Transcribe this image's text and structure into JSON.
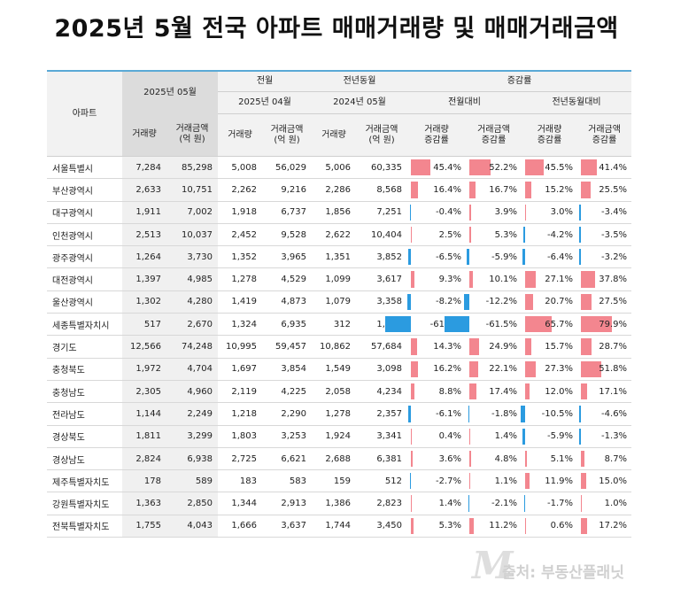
{
  "title": "2025년 5월 전국 아파트 매매거래량 및 매매거래금액",
  "header": {
    "corner": "아파트",
    "current_month": "2025년 05월",
    "prev_month_group": "전월",
    "prev_year_group": "전년동월",
    "change_group": "증감률",
    "prev_month": "2025년 04월",
    "prev_year_month": "2024년 05월",
    "mom": "전월대비",
    "yoy": "전년동월대비",
    "volume": "거래량",
    "amount_l1": "거래금액",
    "amount_l2": "(억 원)",
    "vol_rate_l1": "거래량",
    "amt_rate_l1": "거래금액",
    "rate_l2": "증감률"
  },
  "colors": {
    "positive": "#f3868f",
    "negative": "#2b9be0",
    "accent": "#5aa9d6"
  },
  "rows": [
    {
      "region": "서울특별시",
      "v25": "7,284",
      "a25": "85,298",
      "vpm": "5,008",
      "apm": "56,029",
      "vpy": "5,006",
      "apy": "60,335",
      "mv": "45.4%",
      "ma": "52.2%",
      "yv": "45.5%",
      "ya": "41.4%"
    },
    {
      "region": "부산광역시",
      "v25": "2,633",
      "a25": "10,751",
      "vpm": "2,262",
      "apm": "9,216",
      "vpy": "2,286",
      "apy": "8,568",
      "mv": "16.4%",
      "ma": "16.7%",
      "yv": "15.2%",
      "ya": "25.5%"
    },
    {
      "region": "대구광역시",
      "v25": "1,911",
      "a25": "7,002",
      "vpm": "1,918",
      "apm": "6,737",
      "vpy": "1,856",
      "apy": "7,251",
      "mv": "-0.4%",
      "ma": "3.9%",
      "yv": "3.0%",
      "ya": "-3.4%"
    },
    {
      "region": "인천광역시",
      "v25": "2,513",
      "a25": "10,037",
      "vpm": "2,452",
      "apm": "9,528",
      "vpy": "2,622",
      "apy": "10,404",
      "mv": "2.5%",
      "ma": "5.3%",
      "yv": "-4.2%",
      "ya": "-3.5%"
    },
    {
      "region": "광주광역시",
      "v25": "1,264",
      "a25": "3,730",
      "vpm": "1,352",
      "apm": "3,965",
      "vpy": "1,351",
      "apy": "3,852",
      "mv": "-6.5%",
      "ma": "-5.9%",
      "yv": "-6.4%",
      "ya": "-3.2%"
    },
    {
      "region": "대전광역시",
      "v25": "1,397",
      "a25": "4,985",
      "vpm": "1,278",
      "apm": "4,529",
      "vpy": "1,099",
      "apy": "3,617",
      "mv": "9.3%",
      "ma": "10.1%",
      "yv": "27.1%",
      "ya": "37.8%"
    },
    {
      "region": "울산광역시",
      "v25": "1,302",
      "a25": "4,280",
      "vpm": "1,419",
      "apm": "4,873",
      "vpy": "1,079",
      "apy": "3,358",
      "mv": "-8.2%",
      "ma": "-12.2%",
      "yv": "20.7%",
      "ya": "27.5%"
    },
    {
      "region": "세종특별자치시",
      "v25": "517",
      "a25": "2,670",
      "vpm": "1,324",
      "apm": "6,935",
      "vpy": "312",
      "apy": "1,484",
      "mv": "-61.0%",
      "ma": "-61.5%",
      "yv": "65.7%",
      "ya": "79.9%"
    },
    {
      "region": "경기도",
      "v25": "12,566",
      "a25": "74,248",
      "vpm": "10,995",
      "apm": "59,457",
      "vpy": "10,862",
      "apy": "57,684",
      "mv": "14.3%",
      "ma": "24.9%",
      "yv": "15.7%",
      "ya": "28.7%"
    },
    {
      "region": "충청북도",
      "v25": "1,972",
      "a25": "4,704",
      "vpm": "1,697",
      "apm": "3,854",
      "vpy": "1,549",
      "apy": "3,098",
      "mv": "16.2%",
      "ma": "22.1%",
      "yv": "27.3%",
      "ya": "51.8%"
    },
    {
      "region": "충청남도",
      "v25": "2,305",
      "a25": "4,960",
      "vpm": "2,119",
      "apm": "4,225",
      "vpy": "2,058",
      "apy": "4,234",
      "mv": "8.8%",
      "ma": "17.4%",
      "yv": "12.0%",
      "ya": "17.1%"
    },
    {
      "region": "전라남도",
      "v25": "1,144",
      "a25": "2,249",
      "vpm": "1,218",
      "apm": "2,290",
      "vpy": "1,278",
      "apy": "2,357",
      "mv": "-6.1%",
      "ma": "-1.8%",
      "yv": "-10.5%",
      "ya": "-4.6%"
    },
    {
      "region": "경상북도",
      "v25": "1,811",
      "a25": "3,299",
      "vpm": "1,803",
      "apm": "3,253",
      "vpy": "1,924",
      "apy": "3,341",
      "mv": "0.4%",
      "ma": "1.4%",
      "yv": "-5.9%",
      "ya": "-1.3%"
    },
    {
      "region": "경상남도",
      "v25": "2,824",
      "a25": "6,938",
      "vpm": "2,725",
      "apm": "6,621",
      "vpy": "2,688",
      "apy": "6,381",
      "mv": "3.6%",
      "ma": "4.8%",
      "yv": "5.1%",
      "ya": "8.7%"
    },
    {
      "region": "제주특별자치도",
      "v25": "178",
      "a25": "589",
      "vpm": "183",
      "apm": "583",
      "vpy": "159",
      "apy": "512",
      "mv": "-2.7%",
      "ma": "1.1%",
      "yv": "11.9%",
      "ya": "15.0%"
    },
    {
      "region": "강원특별자치도",
      "v25": "1,363",
      "a25": "2,850",
      "vpm": "1,344",
      "apm": "2,913",
      "vpy": "1,386",
      "apy": "2,823",
      "mv": "1.4%",
      "ma": "-2.1%",
      "yv": "-1.7%",
      "ya": "1.0%"
    },
    {
      "region": "전북특별자치도",
      "v25": "1,755",
      "a25": "4,043",
      "vpm": "1,666",
      "apm": "3,637",
      "vpy": "1,744",
      "apy": "3,450",
      "mv": "5.3%",
      "ma": "11.2%",
      "yv": "0.6%",
      "ya": "17.2%"
    }
  ],
  "watermark": {
    "logo_letter": "M",
    "text": "출처: 부동산플래닛"
  }
}
